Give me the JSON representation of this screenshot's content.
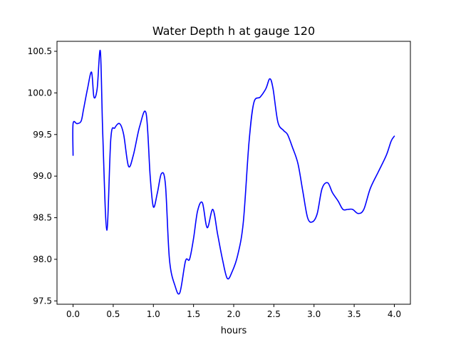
{
  "chart_data": {
    "type": "line",
    "title": "Water Depth h at gauge 120",
    "xlabel": "hours",
    "ylabel": "",
    "xlim": [
      -0.2,
      4.2
    ],
    "ylim": [
      97.46,
      100.62
    ],
    "xticks": [
      0.0,
      0.5,
      1.0,
      1.5,
      2.0,
      2.5,
      3.0,
      3.5,
      4.0
    ],
    "xtick_labels": [
      "0.0",
      "0.5",
      "1.0",
      "1.5",
      "2.0",
      "2.5",
      "3.0",
      "3.5",
      "4.0"
    ],
    "yticks": [
      97.5,
      98.0,
      98.5,
      99.0,
      99.5,
      100.0,
      100.5
    ],
    "ytick_labels": [
      "97.5",
      "98.0",
      "98.5",
      "99.0",
      "99.5",
      "100.0",
      "100.5"
    ],
    "grid": false,
    "series": [
      {
        "color": "#0000ff",
        "x": [
          0.0,
          0.0,
          0.05,
          0.1,
          0.13,
          0.18,
          0.23,
          0.26,
          0.3,
          0.34,
          0.37,
          0.42,
          0.47,
          0.52,
          0.58,
          0.63,
          0.69,
          0.75,
          0.83,
          0.91,
          0.96,
          1.0,
          1.05,
          1.1,
          1.15,
          1.2,
          1.27,
          1.33,
          1.4,
          1.45,
          1.5,
          1.55,
          1.61,
          1.67,
          1.74,
          1.8,
          1.86,
          1.92,
          1.98,
          2.05,
          2.12,
          2.19,
          2.25,
          2.33,
          2.4,
          2.45,
          2.49,
          2.55,
          2.62,
          2.67,
          2.73,
          2.8,
          2.86,
          2.92,
          2.98,
          3.04,
          3.1,
          3.17,
          3.23,
          3.3,
          3.36,
          3.42,
          3.48,
          3.55,
          3.62,
          3.7,
          3.8,
          3.9,
          3.96,
          4.0
        ],
        "y": [
          99.25,
          99.63,
          99.63,
          99.66,
          99.8,
          100.05,
          100.25,
          99.95,
          100.05,
          100.5,
          99.5,
          98.35,
          99.45,
          99.58,
          99.63,
          99.5,
          99.12,
          99.25,
          99.6,
          99.75,
          99.0,
          98.63,
          98.8,
          99.03,
          98.9,
          98.0,
          97.68,
          97.6,
          97.98,
          98.0,
          98.25,
          98.58,
          98.68,
          98.38,
          98.6,
          98.3,
          98.0,
          97.77,
          97.85,
          98.05,
          98.45,
          99.4,
          99.88,
          99.95,
          100.05,
          100.17,
          100.05,
          99.65,
          99.55,
          99.5,
          99.35,
          99.15,
          98.82,
          98.5,
          98.45,
          98.55,
          98.85,
          98.92,
          98.8,
          98.7,
          98.6,
          98.6,
          98.6,
          98.55,
          98.6,
          98.85,
          99.05,
          99.25,
          99.42,
          99.48
        ]
      }
    ]
  }
}
